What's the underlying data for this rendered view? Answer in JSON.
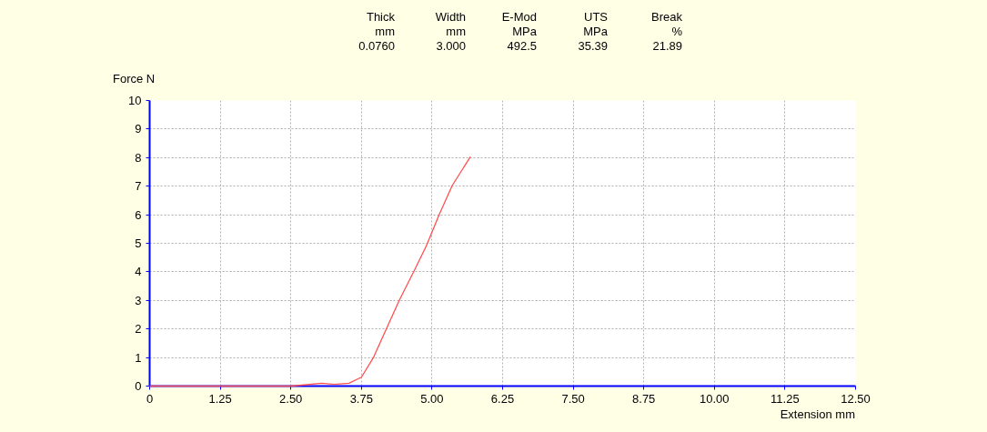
{
  "chart_data": {
    "type": "line",
    "xlabel": "Extension mm",
    "ylabel": "Force N",
    "annotations": [
      "Thick",
      "Width",
      "E-Mod",
      "UTS",
      "Break",
      "mm",
      "mm",
      "MPa",
      "MPa",
      "%",
      "0.0760",
      "3.000",
      "492.5",
      "35.39",
      "21.89"
    ],
    "series": [
      {
        "color": "#ff5050",
        "x": [
          0,
          1.25,
          2.5,
          2.73,
          3.05,
          3.27,
          3.53,
          3.75,
          3.96,
          4.18,
          4.42,
          4.69,
          4.9,
          5.01,
          5.12,
          5.36,
          5.68
        ],
        "values": [
          0,
          0,
          0,
          0.04,
          0.1,
          0.06,
          0.1,
          0.31,
          0.99,
          1.95,
          3.0,
          4.06,
          4.91,
          5.44,
          5.97,
          7.03,
          8.03
        ]
      }
    ],
    "xlim": [
      0,
      12.5
    ],
    "xticks": [
      0,
      {
        "value": 1.25,
        "label": "1.25"
      },
      {
        "value": 2.5,
        "label": "2.50"
      },
      {
        "value": 3.75,
        "label": "3.75"
      },
      {
        "value": 5,
        "label": "5.00"
      },
      {
        "value": 6.25,
        "label": "6.25"
      },
      {
        "value": 7.5,
        "label": "7.50"
      },
      {
        "value": 8.75,
        "label": "8.75"
      },
      {
        "value": 10,
        "label": "10.00"
      },
      {
        "value": 11.25,
        "label": "11.25"
      },
      {
        "value": 12.5,
        "label": "12.50"
      }
    ],
    "ylim": [
      0,
      10
    ],
    "yticks": [
      0,
      1,
      2,
      3,
      4,
      5,
      6,
      7,
      8,
      9,
      10
    ],
    "grid": true,
    "line_style": "solid",
    "marker": "none",
    "legend": false
  }
}
